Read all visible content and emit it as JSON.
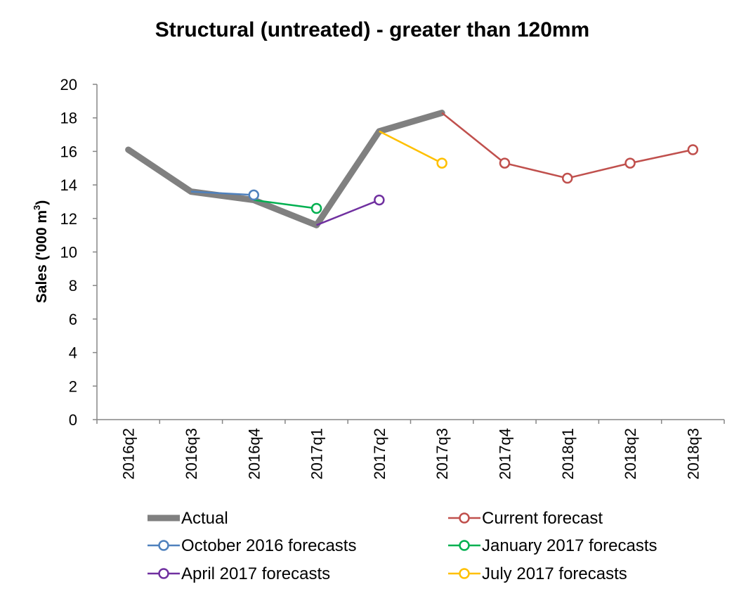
{
  "chart_data": {
    "type": "line",
    "title": "Structural (untreated) - greater than 120mm",
    "ylabel": "Sales ('000 m",
    "ylabel_sup": "3",
    "ylabel_close": ")",
    "xlabel": "",
    "ylim": [
      0,
      20
    ],
    "yticks": [
      0,
      2,
      4,
      6,
      8,
      10,
      12,
      14,
      16,
      18,
      20
    ],
    "categories": [
      "2016q2",
      "2016q3",
      "2016q4",
      "2017q1",
      "2017q2",
      "2017q3",
      "2017q4",
      "2018q1",
      "2018q2",
      "2018q3"
    ],
    "grid": false,
    "legend_position": "bottom",
    "series": [
      {
        "name": "Actual",
        "color": "#808080",
        "style": "thick",
        "marker": false,
        "values": [
          16.1,
          13.6,
          13.1,
          11.6,
          17.2,
          18.3,
          null,
          null,
          null,
          null
        ]
      },
      {
        "name": "Current forecast",
        "color": "#C0504D",
        "style": "thin",
        "marker": true,
        "values": [
          null,
          null,
          null,
          null,
          null,
          18.3,
          15.3,
          14.4,
          15.3,
          16.1
        ]
      },
      {
        "name": "October 2016 forecasts",
        "color": "#4F81BD",
        "style": "thin",
        "marker": true,
        "values": [
          null,
          13.6,
          13.4,
          null,
          null,
          null,
          null,
          null,
          null,
          null
        ]
      },
      {
        "name": "January 2017 forecasts",
        "color": "#00B050",
        "style": "thin",
        "marker": true,
        "values": [
          null,
          null,
          13.1,
          12.6,
          null,
          null,
          null,
          null,
          null,
          null
        ]
      },
      {
        "name": "April 2017 forecasts",
        "color": "#7030A0",
        "style": "thin",
        "marker": true,
        "values": [
          null,
          null,
          null,
          11.6,
          13.1,
          null,
          null,
          null,
          null,
          null
        ]
      },
      {
        "name": "July 2017 forecasts",
        "color": "#FFC000",
        "style": "thin",
        "marker": true,
        "values": [
          null,
          null,
          null,
          null,
          17.2,
          15.3,
          null,
          null,
          null,
          null
        ]
      }
    ]
  }
}
